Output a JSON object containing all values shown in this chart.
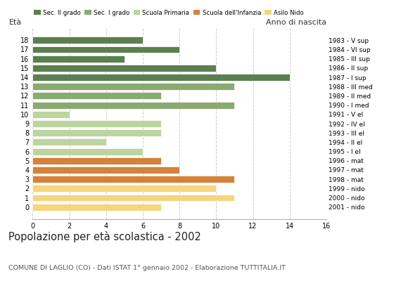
{
  "ages": [
    18,
    17,
    16,
    15,
    14,
    13,
    12,
    11,
    10,
    9,
    8,
    7,
    6,
    5,
    4,
    3,
    2,
    1,
    0
  ],
  "values": [
    6,
    8,
    5,
    10,
    14,
    11,
    7,
    11,
    2,
    7,
    7,
    4,
    6,
    7,
    8,
    11,
    10,
    11,
    7
  ],
  "right_labels": [
    "1983 - V sup",
    "1984 - VI sup",
    "1985 - III sup",
    "1986 - II sup",
    "1987 - I sup",
    "1988 - III med",
    "1989 - II med",
    "1990 - I med",
    "1991 - V el",
    "1992 - IV el",
    "1993 - III el",
    "1994 - II el",
    "1995 - I el",
    "1996 - mat",
    "1997 - mat",
    "1998 - mat",
    "1999 - nido",
    "2000 - nido",
    "2001 - nido"
  ],
  "bar_colors": [
    "#5b7f4e",
    "#5b7f4e",
    "#5b7f4e",
    "#5b7f4e",
    "#5b7f4e",
    "#8aaa72",
    "#8aaa72",
    "#8aaa72",
    "#bdd4a0",
    "#bdd4a0",
    "#bdd4a0",
    "#bdd4a0",
    "#bdd4a0",
    "#d4823a",
    "#d4823a",
    "#d4823a",
    "#f5d57e",
    "#f5d57e",
    "#f5d57e"
  ],
  "legend_labels": [
    "Sec. II grado",
    "Sec. I grado",
    "Scuola Primaria",
    "Scuola dell'Infanzia",
    "Asilo Nido"
  ],
  "legend_colors": [
    "#5b7f4e",
    "#8aaa72",
    "#bdd4a0",
    "#d4823a",
    "#f5d57e"
  ],
  "label_eta": "Età",
  "label_anno": "Anno di nascita",
  "title": "Popolazione per età scolastica - 2002",
  "subtitle": "COMUNE DI LAGLIO (CO) - Dati ISTAT 1° gennaio 2002 - Elaborazione TUTTITALIA.IT",
  "xlim": [
    0,
    16
  ],
  "xticks": [
    0,
    2,
    4,
    6,
    8,
    10,
    12,
    14,
    16
  ],
  "background_color": "#ffffff",
  "grid_color": "#cccccc"
}
